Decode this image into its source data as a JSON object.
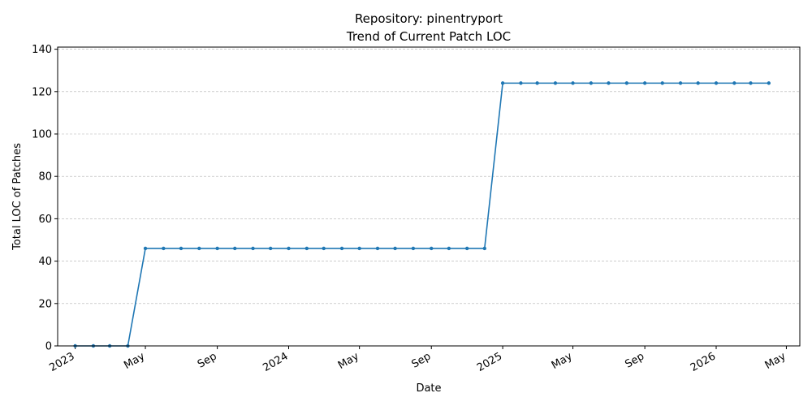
{
  "chart_data": {
    "type": "line",
    "title": "Repository: pinentryport",
    "subtitle": "Trend of Current Patch LOC",
    "xlabel": "Date",
    "ylabel": "Total LOC of Patches",
    "ylim": [
      0,
      141
    ],
    "xlim": [
      "2022-12-02",
      "2026-05-24"
    ],
    "yticks": [
      0,
      20,
      40,
      60,
      80,
      100,
      120,
      140
    ],
    "xticks": [
      {
        "date": "2023-01-01",
        "label": "2023"
      },
      {
        "date": "2023-05-01",
        "label": "May"
      },
      {
        "date": "2023-09-01",
        "label": "Sep"
      },
      {
        "date": "2024-01-01",
        "label": "2024"
      },
      {
        "date": "2024-05-01",
        "label": "May"
      },
      {
        "date": "2024-09-01",
        "label": "Sep"
      },
      {
        "date": "2025-01-01",
        "label": "2025"
      },
      {
        "date": "2025-05-01",
        "label": "May"
      },
      {
        "date": "2025-09-01",
        "label": "Sep"
      },
      {
        "date": "2026-01-01",
        "label": "2026"
      },
      {
        "date": "2026-05-01",
        "label": "May"
      }
    ],
    "grid": "y-only",
    "series": [
      {
        "color": "#1f77b4",
        "x": [
          "2023-01-01",
          "2023-02-01",
          "2023-03-01",
          "2023-04-01",
          "2023-05-01",
          "2023-06-01",
          "2023-07-01",
          "2023-08-01",
          "2023-09-01",
          "2023-10-01",
          "2023-11-01",
          "2023-12-01",
          "2024-01-01",
          "2024-02-01",
          "2024-03-01",
          "2024-04-01",
          "2024-05-01",
          "2024-06-01",
          "2024-07-01",
          "2024-08-01",
          "2024-09-01",
          "2024-10-01",
          "2024-11-01",
          "2024-12-01",
          "2025-01-01",
          "2025-02-01",
          "2025-03-01",
          "2025-04-01",
          "2025-05-01",
          "2025-06-01",
          "2025-07-01",
          "2025-08-01",
          "2025-09-01",
          "2025-10-01",
          "2025-11-01",
          "2025-12-01",
          "2026-01-01",
          "2026-02-01",
          "2026-03-01",
          "2026-04-01"
        ],
        "y": [
          0,
          0,
          0,
          0,
          46,
          46,
          46,
          46,
          46,
          46,
          46,
          46,
          46,
          46,
          46,
          46,
          46,
          46,
          46,
          46,
          46,
          46,
          46,
          46,
          124,
          124,
          124,
          124,
          124,
          124,
          124,
          124,
          124,
          124,
          124,
          124,
          124,
          124,
          124,
          124
        ]
      }
    ]
  }
}
